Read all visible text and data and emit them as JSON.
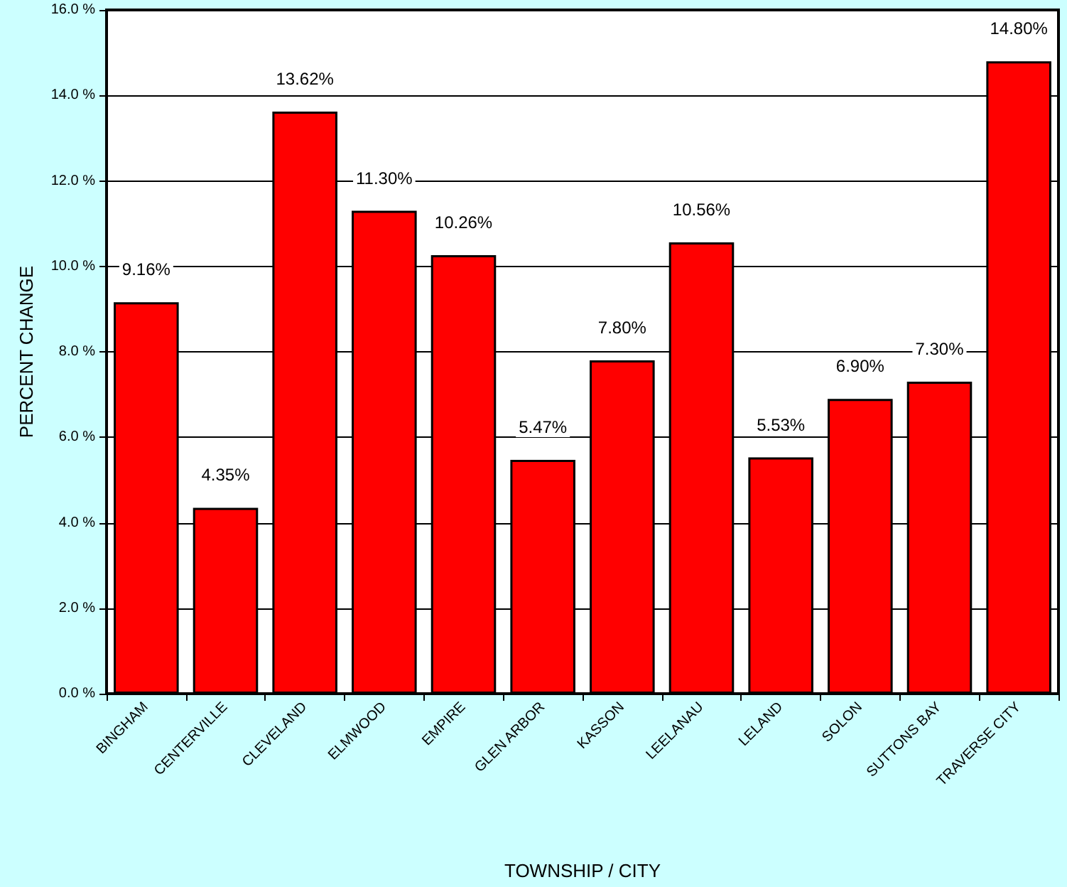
{
  "chart_data": {
    "type": "bar",
    "xlabel": "TOWNSHIP / CITY",
    "ylabel": "PERCENT CHANGE",
    "categories": [
      "BINGHAM",
      "CENTERVILLE",
      "CLEVELAND",
      "ELMWOOD",
      "EMPIRE",
      "GLEN ARBOR",
      "KASSON",
      "LEELANAU",
      "LELAND",
      "SOLON",
      "SUTTONS BAY",
      "TRAVERSE CITY"
    ],
    "values": [
      9.16,
      4.35,
      13.62,
      11.3,
      10.26,
      5.47,
      7.8,
      10.56,
      5.53,
      6.9,
      7.3,
      14.8
    ],
    "value_labels": [
      "9.16%",
      "4.35%",
      "13.62%",
      "11.30%",
      "10.26%",
      "5.47%",
      "7.80%",
      "10.56%",
      "5.53%",
      "6.90%",
      "7.30%",
      "14.80%"
    ],
    "color": "#ff0000",
    "ylim": [
      0,
      16
    ],
    "yticks": [
      {
        "value": 0,
        "label": "0.0 %"
      },
      {
        "value": 2,
        "label": "2.0 %"
      },
      {
        "value": 4,
        "label": "4.0 %"
      },
      {
        "value": 6,
        "label": "6.0 %"
      },
      {
        "value": 8,
        "label": "8.0 %"
      },
      {
        "value": 10,
        "label": "10.0 %"
      },
      {
        "value": 12,
        "label": "12.0 %"
      },
      {
        "value": 14,
        "label": "14.0 %"
      },
      {
        "value": 16,
        "label": "16.0 %"
      }
    ],
    "grid": "y"
  }
}
